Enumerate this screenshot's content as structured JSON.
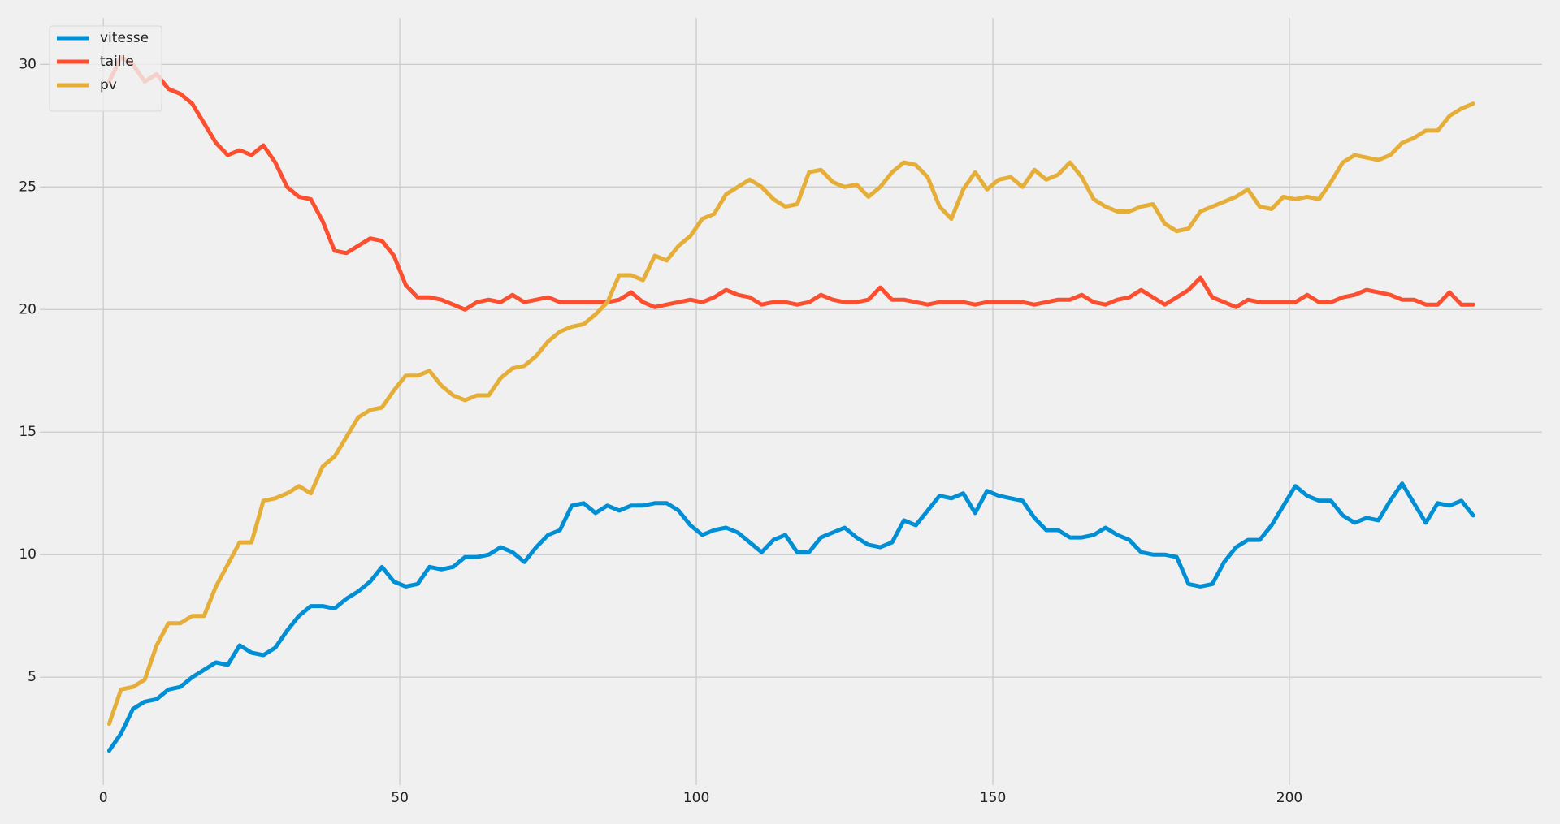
{
  "chart_data": {
    "type": "line",
    "x": [
      1,
      3,
      5,
      7,
      9,
      11,
      13,
      15,
      17,
      19,
      21,
      23,
      25,
      27,
      29,
      31,
      33,
      35,
      37,
      39,
      41,
      43,
      45,
      47,
      49,
      51,
      53,
      55,
      57,
      59,
      61,
      63,
      65,
      67,
      69,
      71,
      73,
      75,
      77,
      79,
      81,
      83,
      85,
      87,
      89,
      91,
      93,
      95,
      97,
      99,
      101,
      103,
      105,
      107,
      109,
      111,
      113,
      115,
      117,
      119,
      121,
      123,
      125,
      127,
      129,
      131,
      133,
      135,
      137,
      139,
      141,
      143,
      145,
      147,
      149,
      151,
      153,
      155,
      157,
      159,
      161,
      163,
      165,
      167,
      169,
      171,
      173,
      175,
      177,
      179,
      181,
      183,
      185,
      187,
      189,
      191,
      193,
      195,
      197,
      199,
      201,
      203,
      205,
      207,
      209,
      211,
      213,
      215,
      217,
      219,
      221,
      223,
      225,
      227,
      229,
      231
    ],
    "series": [
      {
        "name": "vitesse",
        "color": "#008fd5",
        "values": [
          2.0,
          2.7,
          3.7,
          4.0,
          4.1,
          4.5,
          4.6,
          5.0,
          5.3,
          5.6,
          5.5,
          6.3,
          6.0,
          5.9,
          6.2,
          6.9,
          7.5,
          7.9,
          7.9,
          7.8,
          8.2,
          8.5,
          8.9,
          9.5,
          8.9,
          8.7,
          8.8,
          9.5,
          9.4,
          9.5,
          9.9,
          9.9,
          10.0,
          10.3,
          10.1,
          9.7,
          10.3,
          10.8,
          11.0,
          12.0,
          12.1,
          11.7,
          12.0,
          11.8,
          12.0,
          12.0,
          12.1,
          12.1,
          11.8,
          11.2,
          10.8,
          11.0,
          11.1,
          10.9,
          10.5,
          10.1,
          10.6,
          10.8,
          10.1,
          10.1,
          10.7,
          10.9,
          11.1,
          10.7,
          10.4,
          10.3,
          10.5,
          11.4,
          11.2,
          11.8,
          12.4,
          12.3,
          12.5,
          11.7,
          12.6,
          12.4,
          12.3,
          12.2,
          11.5,
          11.0,
          11.0,
          10.7,
          10.7,
          10.8,
          11.1,
          10.8,
          10.6,
          10.1,
          10.0,
          10.0,
          9.9,
          8.8,
          8.7,
          8.8,
          9.7,
          10.3,
          10.6,
          10.6,
          11.2,
          12.0,
          12.8,
          12.4,
          12.2,
          12.2,
          11.6,
          11.3,
          11.5,
          11.4,
          12.2,
          12.9,
          12.1,
          11.3,
          12.1,
          12.0,
          12.2,
          11.6
        ]
      },
      {
        "name": "taille",
        "color": "#fc4f30",
        "values": [
          29.3,
          30.3,
          30.0,
          29.3,
          29.6,
          29.0,
          28.8,
          28.4,
          27.6,
          26.8,
          26.3,
          26.5,
          26.3,
          26.7,
          26.0,
          25.0,
          24.6,
          24.5,
          23.6,
          22.4,
          22.3,
          22.6,
          22.9,
          22.8,
          22.2,
          21.0,
          20.5,
          20.5,
          20.4,
          20.2,
          20.0,
          20.3,
          20.4,
          20.3,
          20.6,
          20.3,
          20.4,
          20.5,
          20.3,
          20.3,
          20.3,
          20.3,
          20.3,
          20.4,
          20.7,
          20.3,
          20.1,
          20.2,
          20.3,
          20.4,
          20.3,
          20.5,
          20.8,
          20.6,
          20.5,
          20.2,
          20.3,
          20.3,
          20.2,
          20.3,
          20.6,
          20.4,
          20.3,
          20.3,
          20.4,
          20.9,
          20.4,
          20.4,
          20.3,
          20.2,
          20.3,
          20.3,
          20.3,
          20.2,
          20.3,
          20.3,
          20.3,
          20.3,
          20.2,
          20.3,
          20.4,
          20.4,
          20.6,
          20.3,
          20.2,
          20.4,
          20.5,
          20.8,
          20.5,
          20.2,
          20.5,
          20.8,
          21.3,
          20.5,
          20.3,
          20.1,
          20.4,
          20.3,
          20.3,
          20.3,
          20.3,
          20.6,
          20.3,
          20.3,
          20.5,
          20.6,
          20.8,
          20.7,
          20.6,
          20.4,
          20.4,
          20.2,
          20.2,
          20.7,
          20.2,
          20.2
        ]
      },
      {
        "name": "pv",
        "color": "#e5ae38",
        "values": [
          3.1,
          4.5,
          4.6,
          4.9,
          6.3,
          7.2,
          7.2,
          7.5,
          7.5,
          8.7,
          9.6,
          10.5,
          10.5,
          12.2,
          12.3,
          12.5,
          12.8,
          12.5,
          13.6,
          14.0,
          14.8,
          15.6,
          15.9,
          16.0,
          16.7,
          17.3,
          17.3,
          17.5,
          16.9,
          16.5,
          16.3,
          16.5,
          16.5,
          17.2,
          17.6,
          17.7,
          18.1,
          18.7,
          19.1,
          19.3,
          19.4,
          19.8,
          20.3,
          21.4,
          21.4,
          21.2,
          22.2,
          22.0,
          22.6,
          23.0,
          23.7,
          23.9,
          24.7,
          25.0,
          25.3,
          25.0,
          24.5,
          24.2,
          24.3,
          25.6,
          25.7,
          25.2,
          25.0,
          25.1,
          24.6,
          25.0,
          25.6,
          26.0,
          25.9,
          25.4,
          24.2,
          23.7,
          24.9,
          25.6,
          24.9,
          25.3,
          25.4,
          25.0,
          25.7,
          25.3,
          25.5,
          26.0,
          25.4,
          24.5,
          24.2,
          24.0,
          24.0,
          24.2,
          24.3,
          23.5,
          23.2,
          23.3,
          24.0,
          24.2,
          24.4,
          24.6,
          24.9,
          24.2,
          24.1,
          24.6,
          24.5,
          24.6,
          24.5,
          25.2,
          26.0,
          26.3,
          26.2,
          26.1,
          26.3,
          26.8,
          27.0,
          27.3,
          27.3,
          27.9,
          28.2,
          28.4
        ]
      }
    ],
    "xlim": [
      -10.7,
      242.6
    ],
    "xticks": [
      0,
      50,
      100,
      150,
      200
    ],
    "ylim": [
      0.6,
      31.9
    ],
    "yticks": [
      5,
      10,
      15,
      20,
      25,
      30
    ],
    "grid": true,
    "legend": "upper left"
  }
}
